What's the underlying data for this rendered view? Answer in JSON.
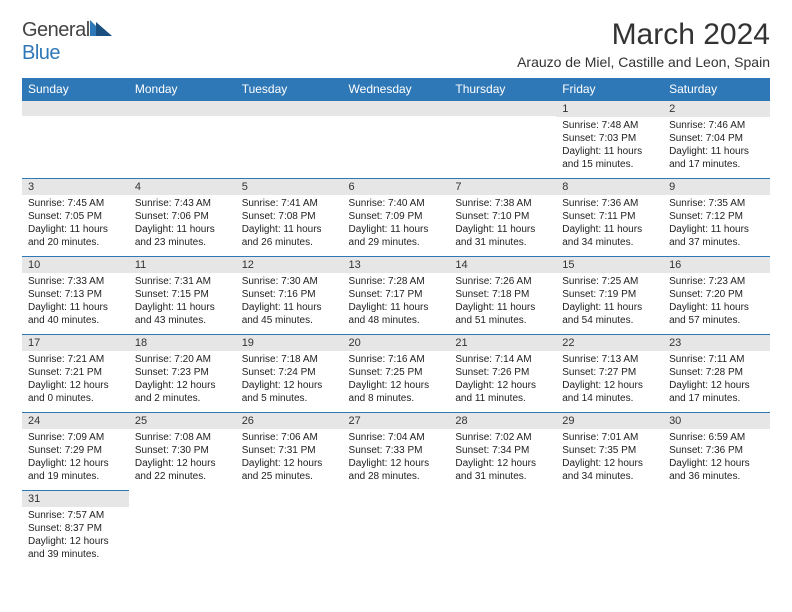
{
  "brand": {
    "part1": "General",
    "part2": "Blue"
  },
  "title": "March 2024",
  "location": "Arauzo de Miel, Castille and Leon, Spain",
  "header_bg": "#2f78b7",
  "daynames": [
    "Sunday",
    "Monday",
    "Tuesday",
    "Wednesday",
    "Thursday",
    "Friday",
    "Saturday"
  ],
  "weeks": [
    [
      {
        "n": "",
        "lines": [
          "",
          "",
          "",
          ""
        ]
      },
      {
        "n": "",
        "lines": [
          "",
          "",
          "",
          ""
        ]
      },
      {
        "n": "",
        "lines": [
          "",
          "",
          "",
          ""
        ]
      },
      {
        "n": "",
        "lines": [
          "",
          "",
          "",
          ""
        ]
      },
      {
        "n": "",
        "lines": [
          "",
          "",
          "",
          ""
        ]
      },
      {
        "n": "1",
        "lines": [
          "Sunrise: 7:48 AM",
          "Sunset: 7:03 PM",
          "Daylight: 11 hours",
          "and 15 minutes."
        ]
      },
      {
        "n": "2",
        "lines": [
          "Sunrise: 7:46 AM",
          "Sunset: 7:04 PM",
          "Daylight: 11 hours",
          "and 17 minutes."
        ]
      }
    ],
    [
      {
        "n": "3",
        "lines": [
          "Sunrise: 7:45 AM",
          "Sunset: 7:05 PM",
          "Daylight: 11 hours",
          "and 20 minutes."
        ]
      },
      {
        "n": "4",
        "lines": [
          "Sunrise: 7:43 AM",
          "Sunset: 7:06 PM",
          "Daylight: 11 hours",
          "and 23 minutes."
        ]
      },
      {
        "n": "5",
        "lines": [
          "Sunrise: 7:41 AM",
          "Sunset: 7:08 PM",
          "Daylight: 11 hours",
          "and 26 minutes."
        ]
      },
      {
        "n": "6",
        "lines": [
          "Sunrise: 7:40 AM",
          "Sunset: 7:09 PM",
          "Daylight: 11 hours",
          "and 29 minutes."
        ]
      },
      {
        "n": "7",
        "lines": [
          "Sunrise: 7:38 AM",
          "Sunset: 7:10 PM",
          "Daylight: 11 hours",
          "and 31 minutes."
        ]
      },
      {
        "n": "8",
        "lines": [
          "Sunrise: 7:36 AM",
          "Sunset: 7:11 PM",
          "Daylight: 11 hours",
          "and 34 minutes."
        ]
      },
      {
        "n": "9",
        "lines": [
          "Sunrise: 7:35 AM",
          "Sunset: 7:12 PM",
          "Daylight: 11 hours",
          "and 37 minutes."
        ]
      }
    ],
    [
      {
        "n": "10",
        "lines": [
          "Sunrise: 7:33 AM",
          "Sunset: 7:13 PM",
          "Daylight: 11 hours",
          "and 40 minutes."
        ]
      },
      {
        "n": "11",
        "lines": [
          "Sunrise: 7:31 AM",
          "Sunset: 7:15 PM",
          "Daylight: 11 hours",
          "and 43 minutes."
        ]
      },
      {
        "n": "12",
        "lines": [
          "Sunrise: 7:30 AM",
          "Sunset: 7:16 PM",
          "Daylight: 11 hours",
          "and 45 minutes."
        ]
      },
      {
        "n": "13",
        "lines": [
          "Sunrise: 7:28 AM",
          "Sunset: 7:17 PM",
          "Daylight: 11 hours",
          "and 48 minutes."
        ]
      },
      {
        "n": "14",
        "lines": [
          "Sunrise: 7:26 AM",
          "Sunset: 7:18 PM",
          "Daylight: 11 hours",
          "and 51 minutes."
        ]
      },
      {
        "n": "15",
        "lines": [
          "Sunrise: 7:25 AM",
          "Sunset: 7:19 PM",
          "Daylight: 11 hours",
          "and 54 minutes."
        ]
      },
      {
        "n": "16",
        "lines": [
          "Sunrise: 7:23 AM",
          "Sunset: 7:20 PM",
          "Daylight: 11 hours",
          "and 57 minutes."
        ]
      }
    ],
    [
      {
        "n": "17",
        "lines": [
          "Sunrise: 7:21 AM",
          "Sunset: 7:21 PM",
          "Daylight: 12 hours",
          "and 0 minutes."
        ]
      },
      {
        "n": "18",
        "lines": [
          "Sunrise: 7:20 AM",
          "Sunset: 7:23 PM",
          "Daylight: 12 hours",
          "and 2 minutes."
        ]
      },
      {
        "n": "19",
        "lines": [
          "Sunrise: 7:18 AM",
          "Sunset: 7:24 PM",
          "Daylight: 12 hours",
          "and 5 minutes."
        ]
      },
      {
        "n": "20",
        "lines": [
          "Sunrise: 7:16 AM",
          "Sunset: 7:25 PM",
          "Daylight: 12 hours",
          "and 8 minutes."
        ]
      },
      {
        "n": "21",
        "lines": [
          "Sunrise: 7:14 AM",
          "Sunset: 7:26 PM",
          "Daylight: 12 hours",
          "and 11 minutes."
        ]
      },
      {
        "n": "22",
        "lines": [
          "Sunrise: 7:13 AM",
          "Sunset: 7:27 PM",
          "Daylight: 12 hours",
          "and 14 minutes."
        ]
      },
      {
        "n": "23",
        "lines": [
          "Sunrise: 7:11 AM",
          "Sunset: 7:28 PM",
          "Daylight: 12 hours",
          "and 17 minutes."
        ]
      }
    ],
    [
      {
        "n": "24",
        "lines": [
          "Sunrise: 7:09 AM",
          "Sunset: 7:29 PM",
          "Daylight: 12 hours",
          "and 19 minutes."
        ]
      },
      {
        "n": "25",
        "lines": [
          "Sunrise: 7:08 AM",
          "Sunset: 7:30 PM",
          "Daylight: 12 hours",
          "and 22 minutes."
        ]
      },
      {
        "n": "26",
        "lines": [
          "Sunrise: 7:06 AM",
          "Sunset: 7:31 PM",
          "Daylight: 12 hours",
          "and 25 minutes."
        ]
      },
      {
        "n": "27",
        "lines": [
          "Sunrise: 7:04 AM",
          "Sunset: 7:33 PM",
          "Daylight: 12 hours",
          "and 28 minutes."
        ]
      },
      {
        "n": "28",
        "lines": [
          "Sunrise: 7:02 AM",
          "Sunset: 7:34 PM",
          "Daylight: 12 hours",
          "and 31 minutes."
        ]
      },
      {
        "n": "29",
        "lines": [
          "Sunrise: 7:01 AM",
          "Sunset: 7:35 PM",
          "Daylight: 12 hours",
          "and 34 minutes."
        ]
      },
      {
        "n": "30",
        "lines": [
          "Sunrise: 6:59 AM",
          "Sunset: 7:36 PM",
          "Daylight: 12 hours",
          "and 36 minutes."
        ]
      }
    ],
    [
      {
        "n": "31",
        "lines": [
          "Sunrise: 7:57 AM",
          "Sunset: 8:37 PM",
          "Daylight: 12 hours",
          "and 39 minutes."
        ]
      },
      {
        "n": "",
        "lines": [
          "",
          "",
          "",
          ""
        ]
      },
      {
        "n": "",
        "lines": [
          "",
          "",
          "",
          ""
        ]
      },
      {
        "n": "",
        "lines": [
          "",
          "",
          "",
          ""
        ]
      },
      {
        "n": "",
        "lines": [
          "",
          "",
          "",
          ""
        ]
      },
      {
        "n": "",
        "lines": [
          "",
          "",
          "",
          ""
        ]
      },
      {
        "n": "",
        "lines": [
          "",
          "",
          "",
          ""
        ]
      }
    ]
  ]
}
